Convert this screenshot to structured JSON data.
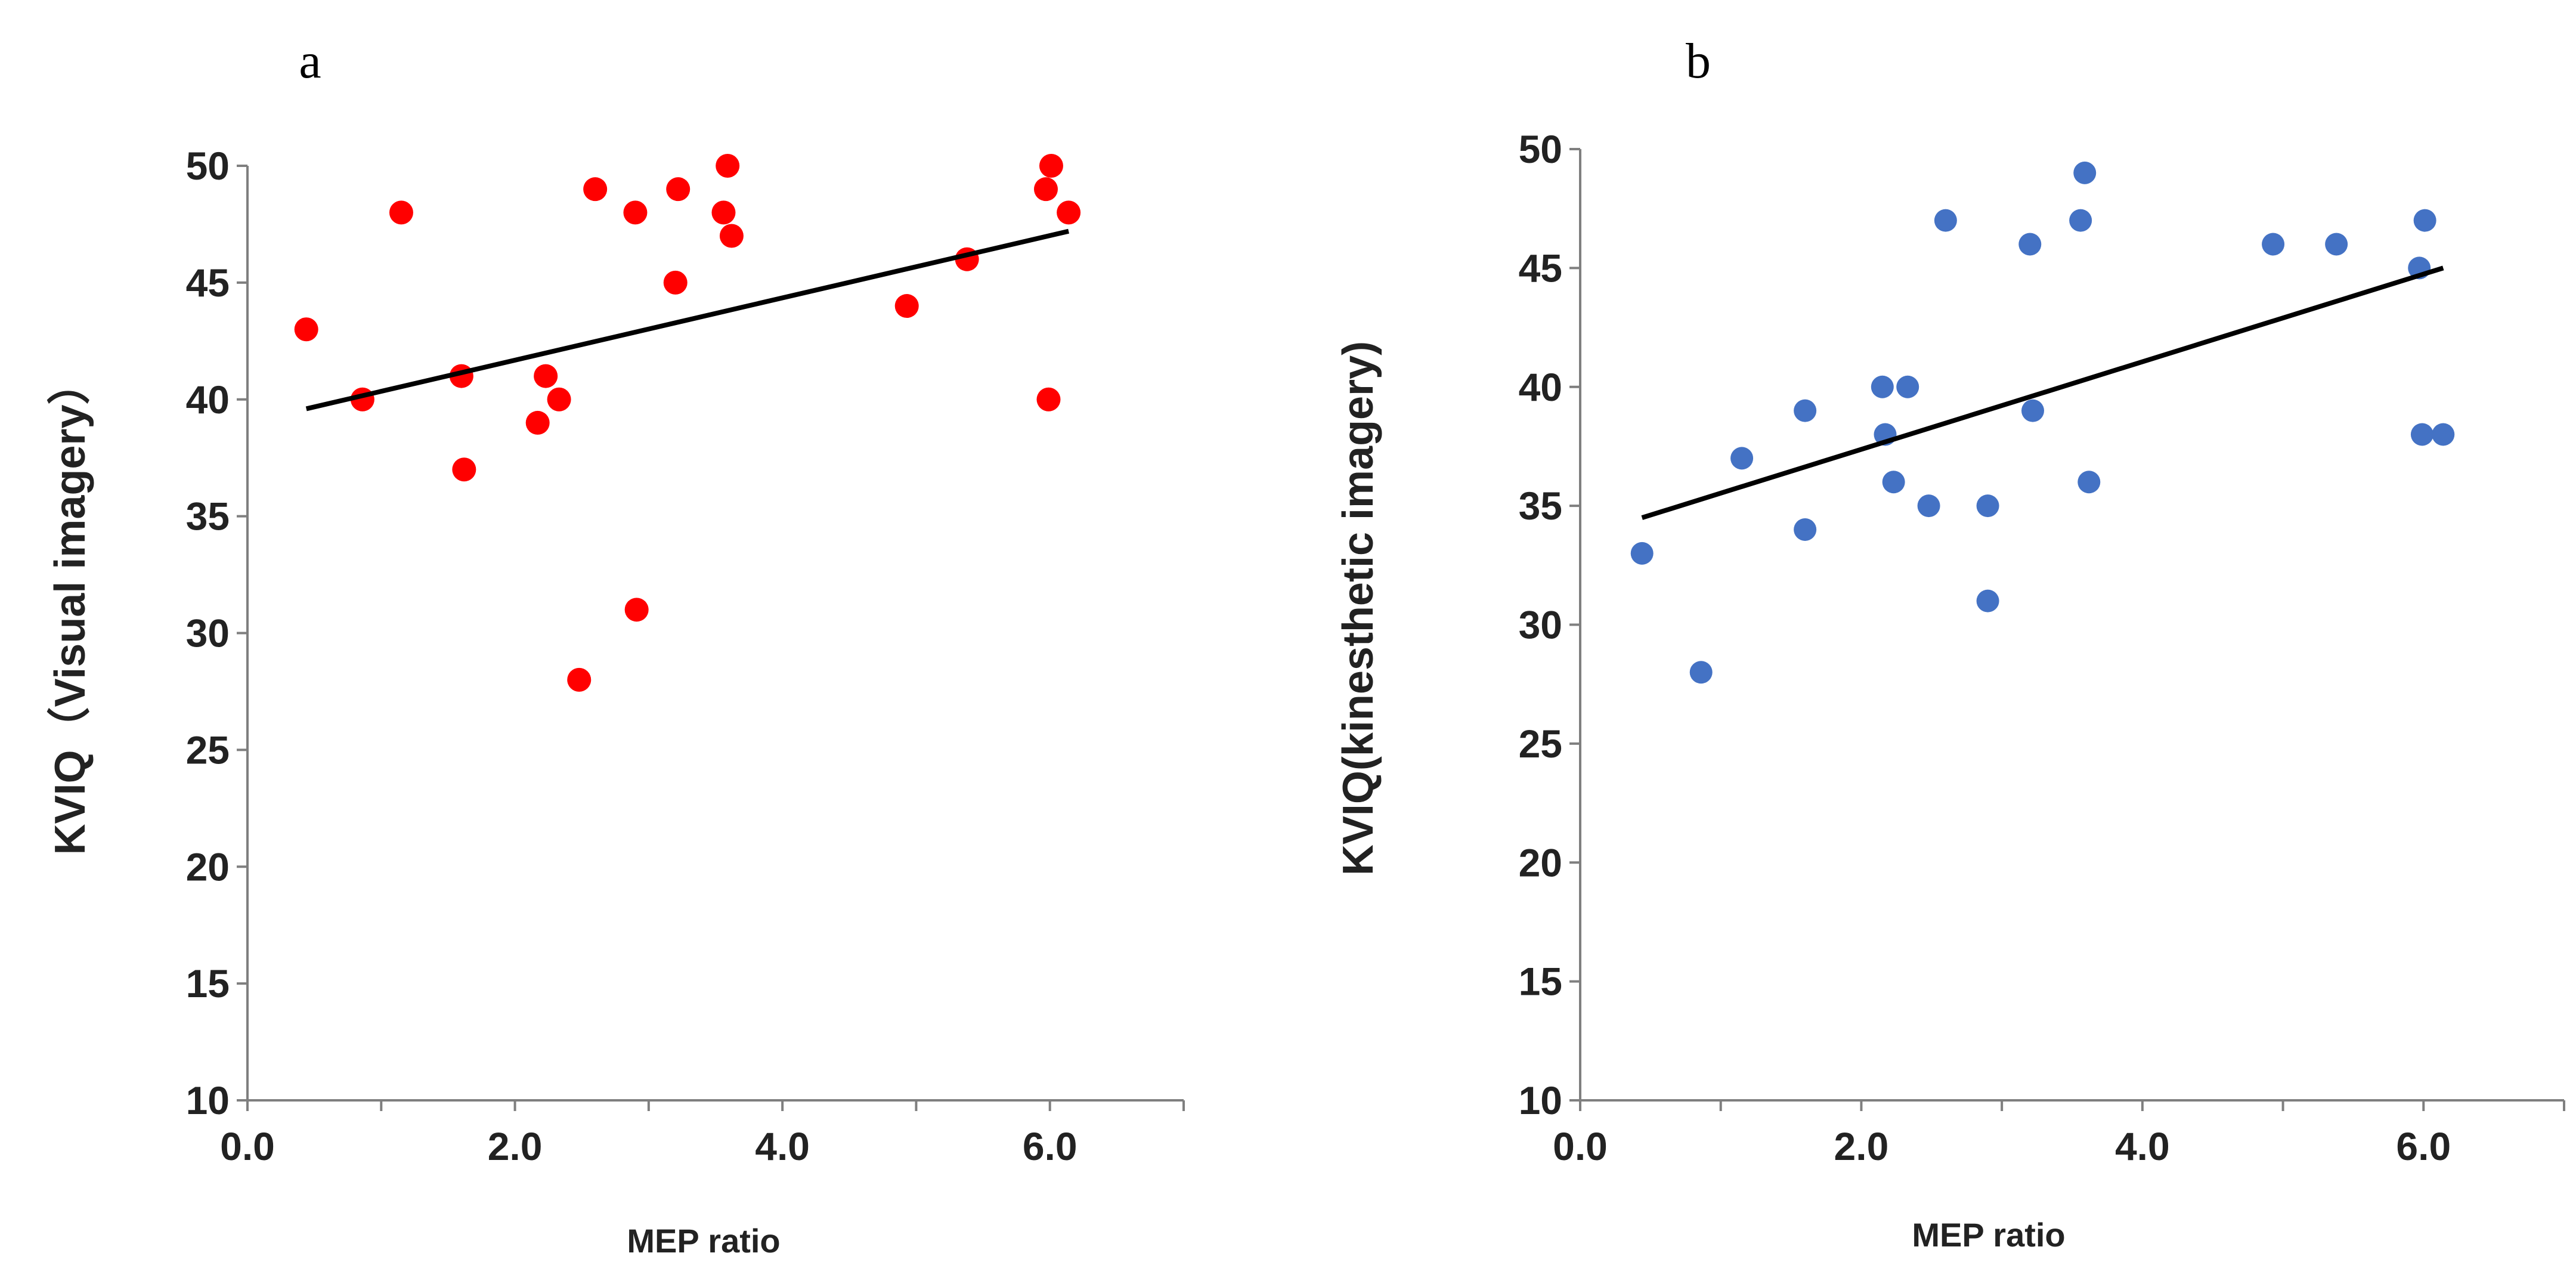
{
  "chart_data": [
    {
      "type": "scatter",
      "panel_label": "a",
      "xlabel": "MEP ratio",
      "ylabel": "KVIQ（Visual imagery）",
      "xlim": [
        0,
        7
      ],
      "ylim": [
        10,
        50
      ],
      "xticks": [
        0,
        2,
        4,
        6
      ],
      "xtick_labels": [
        "0.0",
        "2.0",
        "4.0",
        "6.0"
      ],
      "yticks": [
        10,
        15,
        20,
        25,
        30,
        35,
        40,
        45,
        50
      ],
      "ytick_labels": [
        "10",
        "15",
        "20",
        "25",
        "30",
        "35",
        "40",
        "45",
        "50"
      ],
      "marker_color": "#ff0000",
      "series": [
        {
          "name": "Visual imagery",
          "points": [
            {
              "x": 0.44,
              "y": 43
            },
            {
              "x": 0.86,
              "y": 40
            },
            {
              "x": 1.15,
              "y": 48
            },
            {
              "x": 1.6,
              "y": 41
            },
            {
              "x": 1.62,
              "y": 37
            },
            {
              "x": 2.17,
              "y": 39
            },
            {
              "x": 2.23,
              "y": 41
            },
            {
              "x": 2.33,
              "y": 40
            },
            {
              "x": 2.48,
              "y": 28
            },
            {
              "x": 2.6,
              "y": 49
            },
            {
              "x": 2.9,
              "y": 48
            },
            {
              "x": 2.91,
              "y": 31
            },
            {
              "x": 3.2,
              "y": 45
            },
            {
              "x": 3.22,
              "y": 49
            },
            {
              "x": 3.56,
              "y": 48
            },
            {
              "x": 3.59,
              "y": 50
            },
            {
              "x": 3.62,
              "y": 47
            },
            {
              "x": 4.93,
              "y": 44
            },
            {
              "x": 5.38,
              "y": 46
            },
            {
              "x": 5.97,
              "y": 49
            },
            {
              "x": 5.99,
              "y": 40
            },
            {
              "x": 6.01,
              "y": 50
            },
            {
              "x": 6.14,
              "y": 48
            }
          ]
        }
      ],
      "trendline": {
        "x": [
          0.44,
          6.14
        ],
        "y": [
          39.6,
          47.2
        ],
        "color": "#000000"
      }
    },
    {
      "type": "scatter",
      "panel_label": "b",
      "xlabel": "MEP ratio",
      "ylabel": "KVIQ(kinesthetic imagery)",
      "xlim": [
        0,
        7
      ],
      "ylim": [
        10,
        50
      ],
      "xticks": [
        0,
        2,
        4,
        6
      ],
      "xtick_labels": [
        "0.0",
        "2.0",
        "4.0",
        "6.0"
      ],
      "yticks": [
        10,
        15,
        20,
        25,
        30,
        35,
        40,
        45,
        50
      ],
      "ytick_labels": [
        "10",
        "15",
        "20",
        "25",
        "30",
        "35",
        "40",
        "45",
        "50"
      ],
      "marker_color": "#4472c4",
      "series": [
        {
          "name": "Kinesthetic imagery",
          "points": [
            {
              "x": 0.44,
              "y": 33
            },
            {
              "x": 0.86,
              "y": 28
            },
            {
              "x": 1.15,
              "y": 37
            },
            {
              "x": 1.6,
              "y": 39
            },
            {
              "x": 1.6,
              "y": 34
            },
            {
              "x": 2.15,
              "y": 40
            },
            {
              "x": 2.17,
              "y": 38
            },
            {
              "x": 2.23,
              "y": 36
            },
            {
              "x": 2.33,
              "y": 40
            },
            {
              "x": 2.48,
              "y": 35
            },
            {
              "x": 2.6,
              "y": 47
            },
            {
              "x": 2.9,
              "y": 35
            },
            {
              "x": 2.9,
              "y": 31
            },
            {
              "x": 3.2,
              "y": 46
            },
            {
              "x": 3.22,
              "y": 39
            },
            {
              "x": 3.56,
              "y": 47
            },
            {
              "x": 3.59,
              "y": 49
            },
            {
              "x": 3.62,
              "y": 36
            },
            {
              "x": 4.93,
              "y": 46
            },
            {
              "x": 5.38,
              "y": 46
            },
            {
              "x": 5.97,
              "y": 45
            },
            {
              "x": 5.99,
              "y": 38
            },
            {
              "x": 6.01,
              "y": 47
            },
            {
              "x": 6.14,
              "y": 38
            }
          ]
        }
      ],
      "trendline": {
        "x": [
          0.44,
          6.14
        ],
        "y": [
          34.5,
          45.0
        ],
        "color": "#000000"
      }
    }
  ]
}
